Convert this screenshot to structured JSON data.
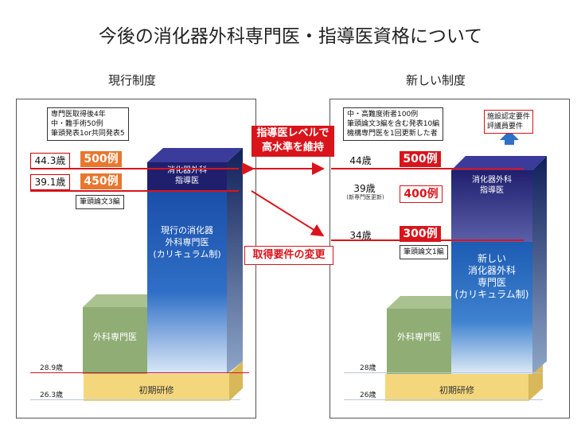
{
  "title": "今後の消化器外科専門医・指導医資格について",
  "left": {
    "heading": "現行制度",
    "notes": [
      "専門医取得後4年",
      "中・難手術50例",
      "筆頭発表1or共同発表5"
    ],
    "row1": {
      "age": "44.3歳",
      "cases": "500例"
    },
    "row2": {
      "age": "39.1歳",
      "cases": "450例"
    },
    "paper_note": "筆頭論文3編",
    "instructor_label": "消化器外科\n指導医",
    "specialist_label": "現行の消化器\n外科専門医\n(カリキュラム制)",
    "surgery_label": "外科専門医",
    "initial_label": "初期研修",
    "age_surgery": "28.9歳",
    "age_initial": "26.3歳"
  },
  "right": {
    "heading": "新しい制度",
    "notes": [
      "中・高難度術者100例",
      "筆頭論文3編を含む発表10編",
      "機構専門医を1回更新した者"
    ],
    "facility_note": [
      "施設認定要件",
      "評議員要件"
    ],
    "row1": {
      "age": "44歳",
      "cases": "500例"
    },
    "row2": {
      "age": "39歳",
      "age_note": "(新専門医更新)",
      "cases": "400例"
    },
    "row3": {
      "age": "34歳",
      "cases": "300例"
    },
    "paper_note": "筆頭論文1編",
    "instructor_label": "消化器外科\n指導医",
    "specialist_label": "新しい\n消化器外科\n専門医\n(カリキュラム制)",
    "surgery_label": "外科専門医",
    "initial_label": "初期研修",
    "age_surgery": "28歳",
    "age_initial": "26歳"
  },
  "center": {
    "banner": "指導医レベルで\n高水準を維持",
    "change_label": "取得要件の変更"
  },
  "colors": {
    "red": "#d9141b",
    "orange": "#e8772e",
    "navy": "#1f1f6e",
    "blue": "#1f5fb3",
    "green": "#8fad74",
    "yellow": "#f4d77c"
  }
}
